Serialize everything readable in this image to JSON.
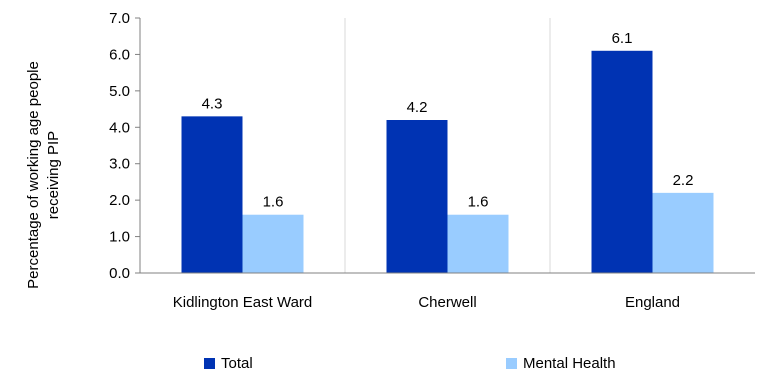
{
  "chart_data": {
    "type": "bar",
    "title": "",
    "xlabel": "",
    "ylabel_lines": [
      "Percentage of working age people",
      "receiving PIP"
    ],
    "categories": [
      "Kidlington East Ward",
      "Cherwell",
      "England"
    ],
    "series": [
      {
        "name": "Total",
        "values": [
          4.3,
          4.2,
          6.1
        ],
        "color": "#0033b3"
      },
      {
        "name": "Mental Health",
        "values": [
          1.6,
          1.6,
          2.2
        ],
        "color": "#99ccff"
      }
    ],
    "ylim": [
      0,
      7
    ],
    "yticks": [
      "0.0",
      "1.0",
      "2.0",
      "3.0",
      "4.0",
      "5.0",
      "6.0",
      "7.0"
    ],
    "grid": "vertical-category-separators",
    "legend_position": "bottom"
  }
}
